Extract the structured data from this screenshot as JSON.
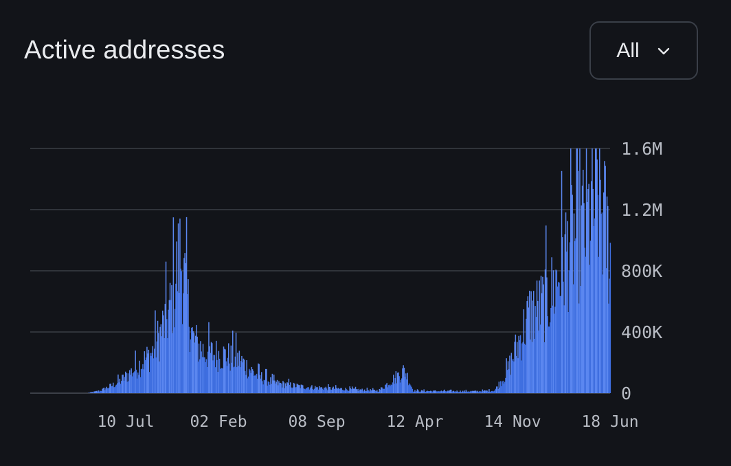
{
  "header": {
    "title": "Active addresses",
    "range_value": "All"
  },
  "colors": {
    "background": "#121419",
    "bar": "#3f6fe0",
    "bar_light": "#5b87f0",
    "grid": "#3a3e46"
  },
  "chart_data": {
    "type": "bar",
    "title": "Active addresses",
    "xlabel": "",
    "ylabel": "",
    "ylim": [
      0,
      1600000
    ],
    "y_ticks": [
      0,
      400000,
      800000,
      1200000,
      1600000
    ],
    "y_tick_labels": [
      "0",
      "400K",
      "800K",
      "1.2M",
      "1.6M"
    ],
    "y_axis_position": "right",
    "x_tick_labels": [
      "10 Jul",
      "02 Feb",
      "08 Sep",
      "12 Apr",
      "14 Nov",
      "18 Jun"
    ],
    "grid": true,
    "series_profile": [
      {
        "position": 0.0,
        "value": 0
      },
      {
        "position": 0.1,
        "value": 2000
      },
      {
        "position": 0.12,
        "value": 20000
      },
      {
        "position": 0.15,
        "value": 80000
      },
      {
        "position": 0.18,
        "value": 190000
      },
      {
        "position": 0.21,
        "value": 320000
      },
      {
        "position": 0.24,
        "value": 650000
      },
      {
        "position": 0.258,
        "value": 1100000
      },
      {
        "position": 0.28,
        "value": 420000
      },
      {
        "position": 0.3,
        "value": 320000
      },
      {
        "position": 0.33,
        "value": 300000
      },
      {
        "position": 0.36,
        "value": 260000
      },
      {
        "position": 0.39,
        "value": 140000
      },
      {
        "position": 0.42,
        "value": 80000
      },
      {
        "position": 0.47,
        "value": 50000
      },
      {
        "position": 0.55,
        "value": 30000
      },
      {
        "position": 0.6,
        "value": 20000
      },
      {
        "position": 0.645,
        "value": 180000
      },
      {
        "position": 0.66,
        "value": 18000
      },
      {
        "position": 0.7,
        "value": 16000
      },
      {
        "position": 0.77,
        "value": 15000
      },
      {
        "position": 0.8,
        "value": 20000
      },
      {
        "position": 0.82,
        "value": 150000
      },
      {
        "position": 0.86,
        "value": 620000
      },
      {
        "position": 0.88,
        "value": 680000
      },
      {
        "position": 0.9,
        "value": 800000
      },
      {
        "position": 0.93,
        "value": 1200000
      },
      {
        "position": 0.96,
        "value": 1350000
      },
      {
        "position": 0.98,
        "value": 1560000
      },
      {
        "position": 1.0,
        "value": 1100000
      }
    ]
  }
}
